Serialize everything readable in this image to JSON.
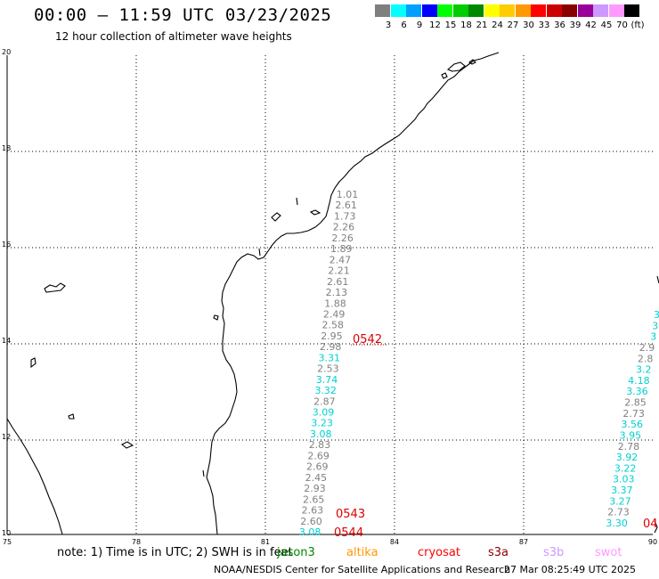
{
  "header": {
    "title": "00:00 – 11:59 UTC 03/23/2025",
    "subtitle": "12 hour collection of altimeter wave heights"
  },
  "colorbar": {
    "colors": [
      "#7f7f7f",
      "#00ffff",
      "#00a0ff",
      "#0000ff",
      "#00ff00",
      "#00cc00",
      "#008800",
      "#ffff00",
      "#ffcc00",
      "#ff9900",
      "#ff0000",
      "#cc0000",
      "#880000",
      "#990099",
      "#cc99ff",
      "#ff99ff",
      "#000000"
    ],
    "labels": [
      "3",
      "6",
      "9",
      "12",
      "15",
      "18",
      "21",
      "24",
      "27",
      "30",
      "33",
      "36",
      "39",
      "42",
      "45",
      "70",
      "(ft)"
    ]
  },
  "map": {
    "lat_labels": [
      "20",
      "18",
      "16",
      "14",
      "12",
      "10"
    ],
    "lon_labels": [
      "75",
      "78",
      "81",
      "84",
      "87",
      "90"
    ]
  },
  "tracks": {
    "track_a": [
      {
        "v": "1.01",
        "c": "#808080"
      },
      {
        "v": "2.61",
        "c": "#808080"
      },
      {
        "v": "1.73",
        "c": "#808080"
      },
      {
        "v": "2.26",
        "c": "#808080"
      },
      {
        "v": "2.26",
        "c": "#808080"
      },
      {
        "v": "1.89",
        "c": "#808080"
      },
      {
        "v": "2.47",
        "c": "#808080"
      },
      {
        "v": "2.21",
        "c": "#808080"
      },
      {
        "v": "2.61",
        "c": "#808080"
      },
      {
        "v": "2.13",
        "c": "#808080"
      },
      {
        "v": "1.88",
        "c": "#808080"
      },
      {
        "v": "2.49",
        "c": "#808080"
      },
      {
        "v": "2.58",
        "c": "#808080"
      },
      {
        "v": "2.95",
        "c": "#808080"
      },
      {
        "v": "2.98",
        "c": "#808080"
      },
      {
        "v": "3.31",
        "c": "#00d0d0"
      },
      {
        "v": "2.53",
        "c": "#808080"
      },
      {
        "v": "3.74",
        "c": "#00d0d0"
      },
      {
        "v": "3.32",
        "c": "#00d0d0"
      },
      {
        "v": "2.87",
        "c": "#808080"
      },
      {
        "v": "3.09",
        "c": "#00d0d0"
      },
      {
        "v": "3.23",
        "c": "#00d0d0"
      },
      {
        "v": "3.08",
        "c": "#00d0d0"
      },
      {
        "v": "2.83",
        "c": "#808080"
      },
      {
        "v": "2.69",
        "c": "#808080"
      },
      {
        "v": "2.69",
        "c": "#808080"
      },
      {
        "v": "2.45",
        "c": "#808080"
      },
      {
        "v": "2.93",
        "c": "#808080"
      },
      {
        "v": "2.65",
        "c": "#808080"
      },
      {
        "v": "2.63",
        "c": "#808080"
      },
      {
        "v": "2.60",
        "c": "#808080"
      },
      {
        "v": "3.08",
        "c": "#00d0d0"
      }
    ],
    "track_b": [
      {
        "v": "3",
        "c": "#00d0d0"
      },
      {
        "v": "3",
        "c": "#00d0d0"
      },
      {
        "v": "3",
        "c": "#00d0d0"
      },
      {
        "v": "2.9",
        "c": "#808080"
      },
      {
        "v": "2.8",
        "c": "#808080"
      },
      {
        "v": "3.2",
        "c": "#00d0d0"
      },
      {
        "v": "4.18",
        "c": "#00d0d0"
      },
      {
        "v": "3.36",
        "c": "#00d0d0"
      },
      {
        "v": "2.85",
        "c": "#808080"
      },
      {
        "v": "2.73",
        "c": "#808080"
      },
      {
        "v": "3.56",
        "c": "#00d0d0"
      },
      {
        "v": "3.95",
        "c": "#00d0d0"
      },
      {
        "v": "2.78",
        "c": "#808080"
      },
      {
        "v": "3.92",
        "c": "#00d0d0"
      },
      {
        "v": "3.22",
        "c": "#00d0d0"
      },
      {
        "v": "3.03",
        "c": "#00d0d0"
      },
      {
        "v": "3.37",
        "c": "#00d0d0"
      },
      {
        "v": "3.27",
        "c": "#00d0d0"
      },
      {
        "v": "2.73",
        "c": "#808080"
      },
      {
        "v": "3.30",
        "c": "#00d0d0"
      }
    ],
    "time_labels": [
      "0542",
      "0543",
      "0544",
      "04"
    ]
  },
  "footer": {
    "note": "note:  1) Time is in UTC;  2) SWH is in feet",
    "satellites": [
      {
        "name": "jason3",
        "color": "#008800"
      },
      {
        "name": "altika",
        "color": "#ff9900"
      },
      {
        "name": "cryosat",
        "color": "#ff0000"
      },
      {
        "name": "s3a",
        "color": "#880000"
      },
      {
        "name": "s3b",
        "color": "#cc99ff"
      },
      {
        "name": "swot",
        "color": "#ff99ff"
      }
    ],
    "credit": "NOAA/NESDIS Center for Satellite Applications and Research",
    "timestamp": "27 Mar 08:25:49 UTC 2025"
  }
}
